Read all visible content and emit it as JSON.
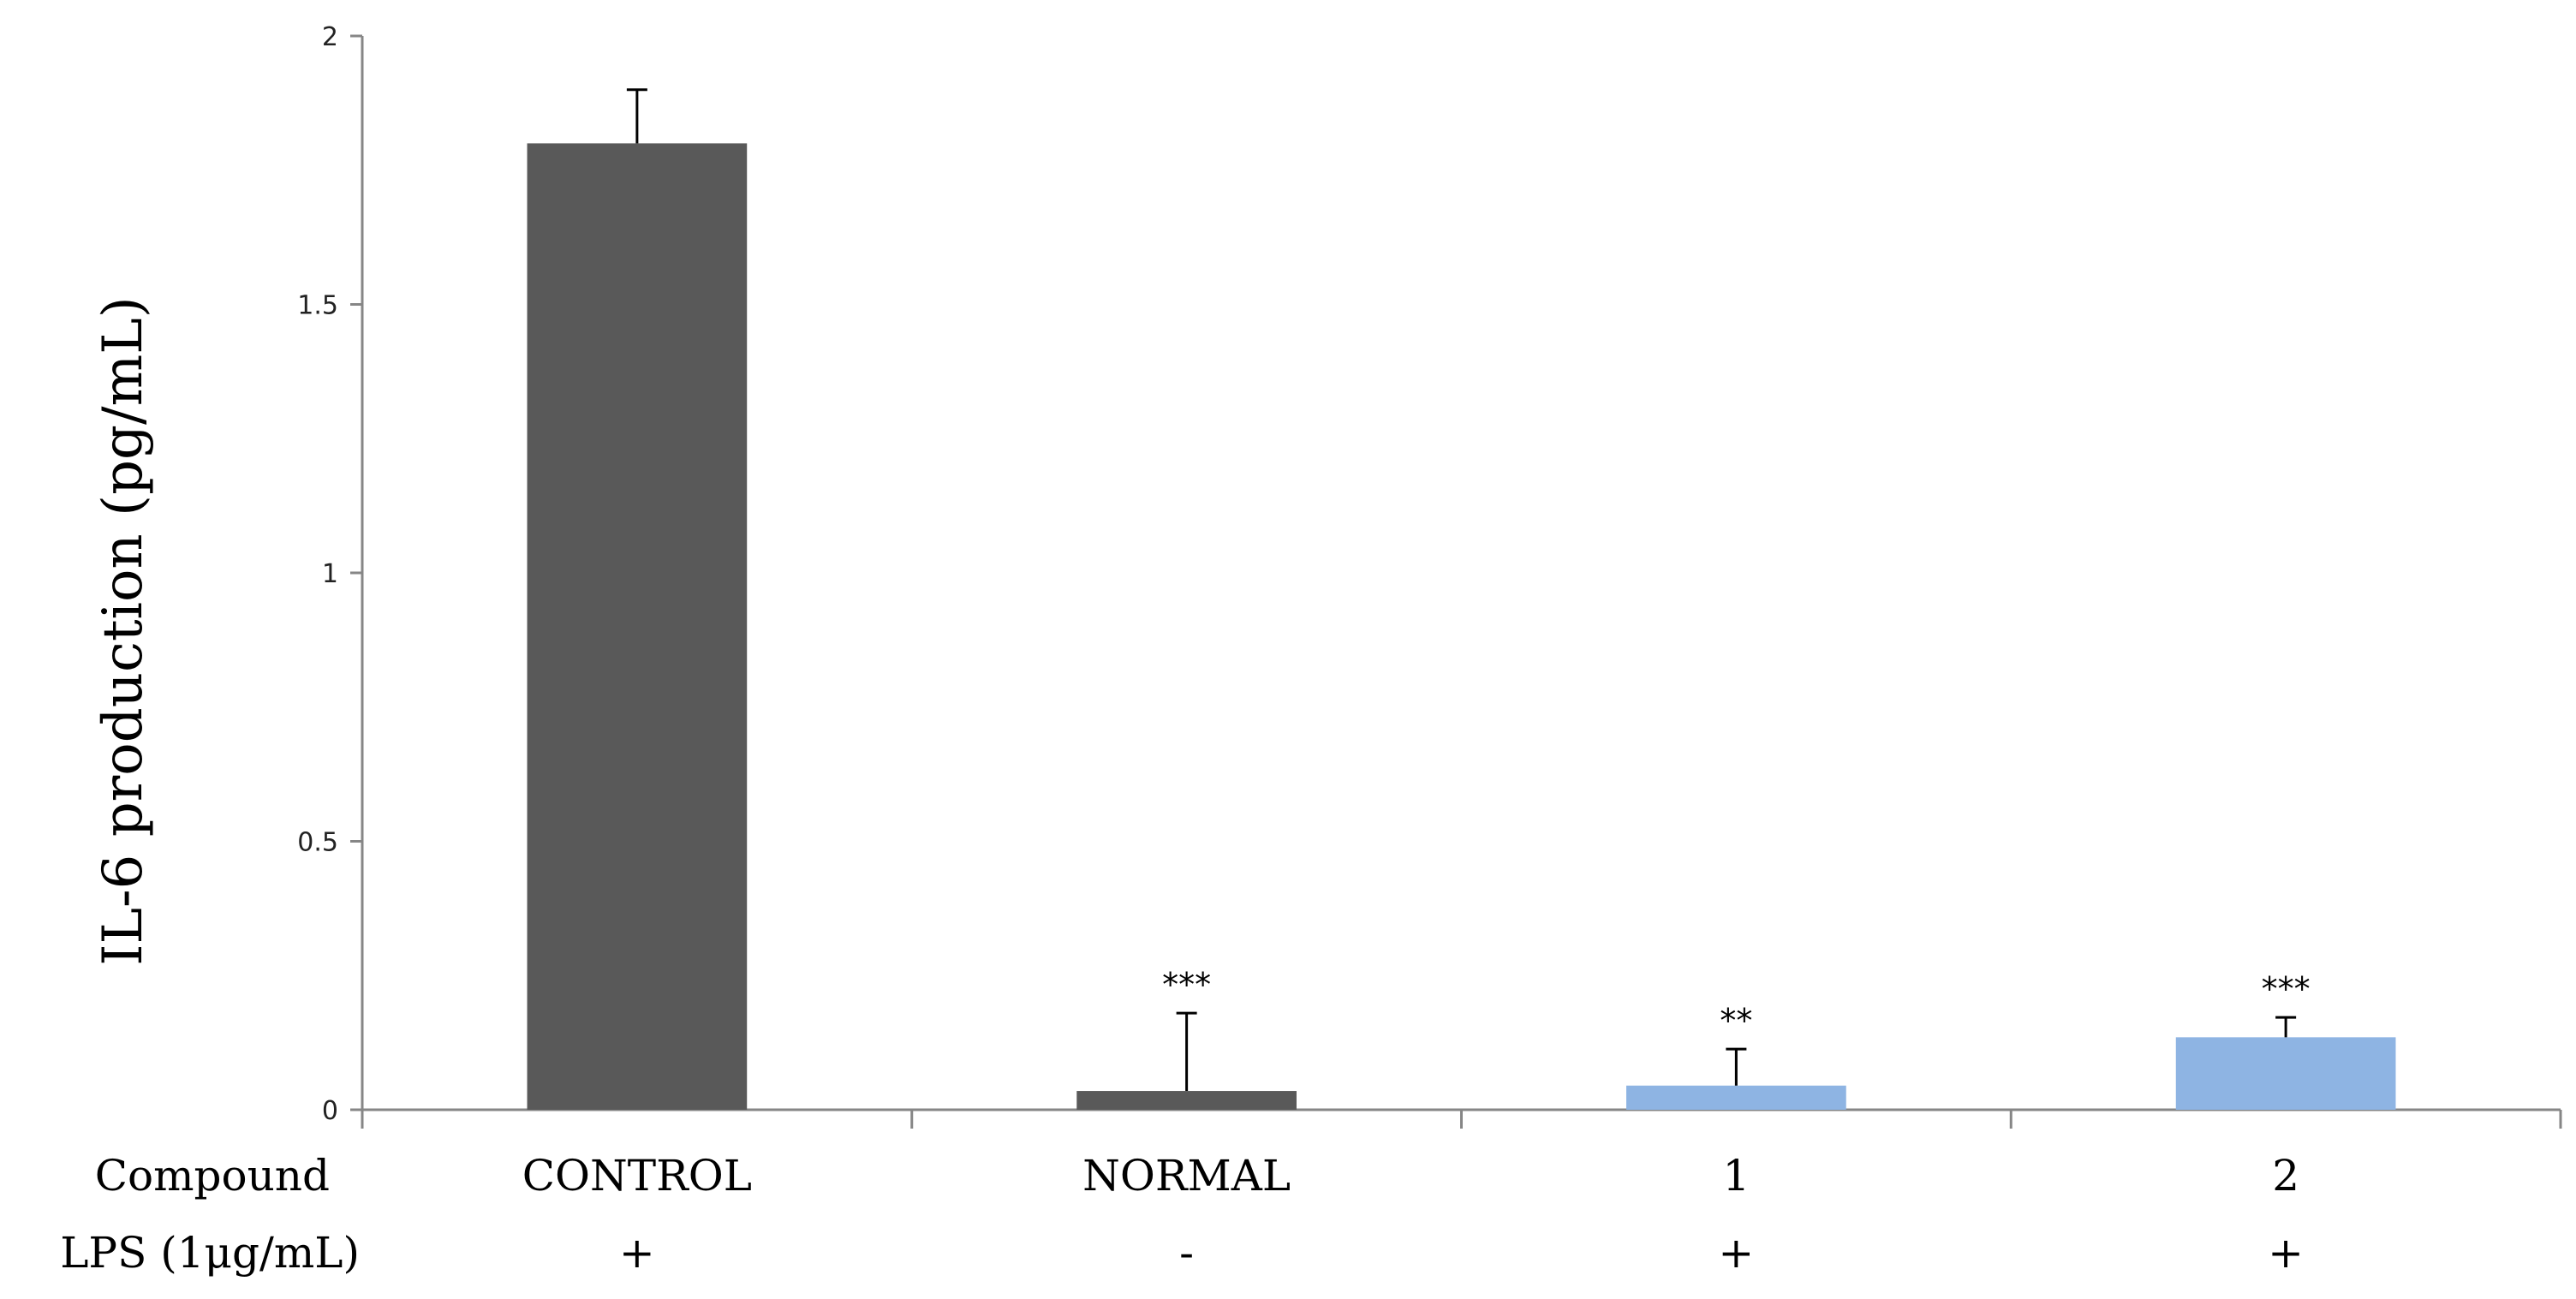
{
  "chart_data": {
    "type": "bar",
    "ylabel": "IL-6 production (pg/mL)",
    "ylim": [
      0,
      2
    ],
    "yticks": [
      "0",
      "0.5",
      "1",
      "1.5",
      "2"
    ],
    "grid": false,
    "categories": [
      "CONTROL",
      "NORMAL",
      "1",
      "2"
    ],
    "values": [
      1.8,
      0.035,
      0.045,
      0.135
    ],
    "errors": [
      0.1,
      0.145,
      0.068,
      0.037
    ],
    "significance": [
      "",
      "***",
      "**",
      "***"
    ],
    "bar_colors": [
      "#595959",
      "#595959",
      "#8eb4e3",
      "#8eb4e3"
    ],
    "row_labels": {
      "compound": "Compound",
      "lps": "LPS (1μg/mL)"
    },
    "lps": [
      "+",
      "-",
      "+",
      "+"
    ]
  }
}
